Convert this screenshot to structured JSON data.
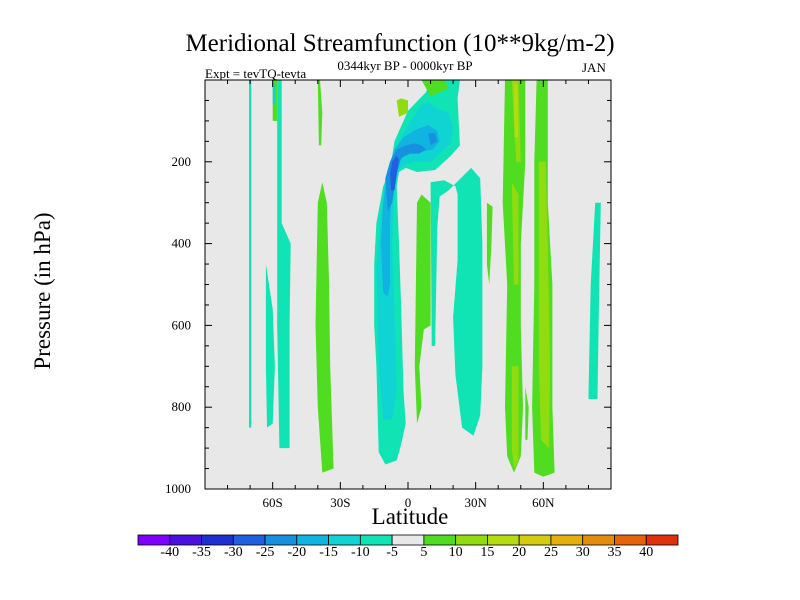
{
  "chart_data": {
    "type": "heatmap",
    "title": "Meridional Streamfunction (10**9kg/m-2)",
    "subtitle": "0344kyr BP - 0000kyr BP",
    "left_label": "Expt = tevTQ-tevta",
    "right_label": "JAN",
    "xlabel": "Latitude",
    "ylabel": "Pressure (in hPa)",
    "xlim": [
      -90,
      90
    ],
    "ylim": [
      1000,
      0
    ],
    "x_ticks": [
      {
        "value": -60,
        "label": "60S"
      },
      {
        "value": -30,
        "label": "30S"
      },
      {
        "value": 0,
        "label": "0"
      },
      {
        "value": 30,
        "label": "30N"
      },
      {
        "value": 60,
        "label": "60N"
      }
    ],
    "y_ticks": [
      {
        "value": 200,
        "label": "200"
      },
      {
        "value": 400,
        "label": "400"
      },
      {
        "value": 600,
        "label": "600"
      },
      {
        "value": 800,
        "label": "800"
      },
      {
        "value": 1000,
        "label": "1000"
      }
    ],
    "colorbar": {
      "levels": [
        -40,
        -35,
        -30,
        -25,
        -20,
        -15,
        -10,
        -5,
        5,
        10,
        15,
        20,
        25,
        30,
        35,
        40
      ],
      "colors": [
        "#8000ff",
        "#4b10e0",
        "#2030d0",
        "#2060e0",
        "#1890e0",
        "#10b4e0",
        "#10d4d4",
        "#10e4b4",
        "#e8e8e8",
        "#50dc20",
        "#90dc10",
        "#b4dc10",
        "#d4cc10",
        "#e4b00c",
        "#e48c0c",
        "#e4640c",
        "#e0300c"
      ]
    },
    "regions": [
      {
        "level": -5,
        "polygon": [
          [
            -70.5,
            0
          ],
          [
            -69.5,
            0
          ],
          [
            -69.5,
            850
          ],
          [
            -70.5,
            850
          ]
        ]
      },
      {
        "level": -5,
        "polygon": [
          [
            -63,
            450
          ],
          [
            -60,
            560
          ],
          [
            -59,
            700
          ],
          [
            -60,
            840
          ],
          [
            -62.5,
            850
          ],
          [
            -63,
            700
          ]
        ]
      },
      {
        "level": -5,
        "polygon": [
          [
            -58,
            0
          ],
          [
            -56,
            0
          ],
          [
            -56,
            350
          ],
          [
            -52,
            400
          ],
          [
            -52.5,
            600
          ],
          [
            -52.5,
            900
          ],
          [
            -57,
            900
          ],
          [
            -58,
            600
          ]
        ]
      },
      {
        "level": -5,
        "polygon": [
          [
            -15,
            450
          ],
          [
            -14,
            350
          ],
          [
            -11,
            260
          ],
          [
            -8,
            220
          ],
          [
            -6,
            150
          ],
          [
            0,
            75
          ],
          [
            8,
            30
          ],
          [
            10,
            0
          ],
          [
            23,
            0
          ],
          [
            22,
            45
          ],
          [
            23,
            160
          ],
          [
            19,
            185
          ],
          [
            12,
            220
          ],
          [
            4,
            225
          ],
          [
            -1,
            215
          ],
          [
            -4,
            225
          ],
          [
            -5,
            260
          ],
          [
            -4,
            400
          ],
          [
            -3,
            560
          ],
          [
            -2,
            760
          ],
          [
            -1,
            840
          ],
          [
            -3,
            890
          ],
          [
            -5,
            930
          ],
          [
            -10,
            940
          ],
          [
            -13,
            910
          ],
          [
            -14,
            700
          ],
          [
            -15,
            600
          ]
        ]
      },
      {
        "level": -5,
        "polygon": [
          [
            10,
            250
          ],
          [
            16,
            245
          ],
          [
            21,
            260
          ],
          [
            22,
            280
          ],
          [
            22,
            440
          ],
          [
            20,
            580
          ],
          [
            21,
            720
          ],
          [
            24,
            850
          ],
          [
            29,
            870
          ],
          [
            32,
            820
          ],
          [
            33,
            700
          ],
          [
            33,
            400
          ],
          [
            32,
            240
          ],
          [
            28,
            215
          ],
          [
            18,
            270
          ],
          [
            14,
            285
          ],
          [
            13,
            360
          ],
          [
            12,
            650
          ],
          [
            10.5,
            650
          ]
        ]
      },
      {
        "level": -5,
        "polygon": [
          [
            83,
            300
          ],
          [
            85.5,
            300
          ],
          [
            84.5,
            600
          ],
          [
            84,
            780
          ],
          [
            80,
            780
          ],
          [
            81,
            500
          ]
        ]
      },
      {
        "level": 5,
        "polygon": [
          [
            -40,
            0
          ],
          [
            -39,
            0
          ],
          [
            -38,
            80
          ],
          [
            -38.5,
            160
          ],
          [
            -39.5,
            160
          ]
        ]
      },
      {
        "level": 5,
        "polygon": [
          [
            -40,
            300
          ],
          [
            -38,
            250
          ],
          [
            -36,
            300
          ],
          [
            -35,
            500
          ],
          [
            -34.5,
            700
          ],
          [
            -33,
            950
          ],
          [
            -38,
            960
          ],
          [
            -40,
            800
          ],
          [
            -41,
            600
          ]
        ]
      },
      {
        "level": 5,
        "polygon": [
          [
            4,
            300
          ],
          [
            6,
            280
          ],
          [
            10,
            300
          ],
          [
            10,
            400
          ],
          [
            10,
            600
          ],
          [
            7,
            610
          ],
          [
            5,
            700
          ],
          [
            6,
            800
          ],
          [
            4,
            840
          ],
          [
            3,
            700
          ]
        ]
      },
      {
        "level": 5,
        "polygon": [
          [
            -60,
            0
          ],
          [
            -58,
            0
          ],
          [
            -58,
            100
          ],
          [
            -60,
            100
          ]
        ]
      },
      {
        "level": 5,
        "polygon": [
          [
            6,
            0
          ],
          [
            16,
            0
          ],
          [
            18,
            20
          ],
          [
            10,
            40
          ]
        ]
      },
      {
        "level": 5,
        "polygon": [
          [
            43,
            0
          ],
          [
            47,
            0
          ],
          [
            50,
            0
          ],
          [
            52,
            0
          ],
          [
            52,
            200
          ],
          [
            50,
            400
          ],
          [
            50,
            600
          ],
          [
            51,
            800
          ],
          [
            50,
            920
          ],
          [
            47,
            960
          ],
          [
            44,
            920
          ],
          [
            43,
            800
          ],
          [
            44,
            500
          ],
          [
            42,
            300
          ]
        ]
      },
      {
        "level": 5,
        "polygon": [
          [
            35,
            300
          ],
          [
            37.5,
            310
          ],
          [
            37,
            400
          ],
          [
            36,
            500
          ],
          [
            35,
            450
          ]
        ]
      },
      {
        "level": 5,
        "polygon": [
          [
            57,
            0
          ],
          [
            62,
            0
          ],
          [
            62,
            300
          ],
          [
            64,
            500
          ],
          [
            64,
            800
          ],
          [
            65,
            960
          ],
          [
            60,
            970
          ],
          [
            56,
            960
          ],
          [
            55,
            800
          ],
          [
            56,
            500
          ],
          [
            56,
            200
          ]
        ]
      },
      {
        "level": 5,
        "polygon": [
          [
            52,
            750
          ],
          [
            53.5,
            800
          ],
          [
            53,
            880
          ],
          [
            52,
            880
          ]
        ]
      },
      {
        "level": 10,
        "polygon": [
          [
            46,
            0
          ],
          [
            49,
            0
          ],
          [
            50,
            200
          ],
          [
            48,
            200
          ],
          [
            47,
            100
          ]
        ]
      },
      {
        "level": 10,
        "polygon": [
          [
            58,
            200
          ],
          [
            61,
            200
          ],
          [
            62,
            400
          ],
          [
            63,
            700
          ],
          [
            62.5,
            900
          ],
          [
            59,
            880
          ],
          [
            58,
            700
          ],
          [
            58,
            400
          ]
        ]
      },
      {
        "level": 10,
        "polygon": [
          [
            46,
            700
          ],
          [
            49,
            700
          ],
          [
            49,
            930
          ],
          [
            47,
            950
          ],
          [
            46,
            900
          ]
        ]
      },
      {
        "level": 10,
        "polygon": [
          [
            -5,
            50
          ],
          [
            -3,
            45
          ],
          [
            0,
            50
          ],
          [
            0,
            80
          ],
          [
            -4,
            90
          ]
        ]
      },
      {
        "level": 10,
        "polygon": [
          [
            46,
            250
          ],
          [
            49,
            280
          ],
          [
            49,
            500
          ],
          [
            47,
            500
          ]
        ]
      },
      {
        "level": 15,
        "polygon": [
          [
            47,
            10
          ],
          [
            48.5,
            10
          ],
          [
            48.8,
            140
          ],
          [
            47.2,
            140
          ]
        ]
      },
      {
        "level": -10,
        "polygon": [
          [
            -14,
            460
          ],
          [
            -12,
            330
          ],
          [
            -10,
            240
          ],
          [
            -8,
            200
          ],
          [
            -4,
            150
          ],
          [
            0,
            110
          ],
          [
            6,
            60
          ],
          [
            9,
            55
          ],
          [
            13,
            70
          ],
          [
            18,
            80
          ],
          [
            20,
            115
          ],
          [
            19,
            155
          ],
          [
            15,
            175
          ],
          [
            10,
            200
          ],
          [
            3,
            200
          ],
          [
            -3,
            210
          ],
          [
            -6,
            250
          ],
          [
            -7,
            400
          ],
          [
            -6,
            560
          ],
          [
            -5,
            760
          ],
          [
            -7,
            830
          ],
          [
            -11,
            830
          ],
          [
            -13,
            700
          ]
        ]
      },
      {
        "level": -10,
        "polygon": [
          [
            -60,
            10
          ],
          [
            -59,
            10
          ],
          [
            -59,
            60
          ],
          [
            -60,
            60
          ]
        ]
      },
      {
        "level": -15,
        "polygon": [
          [
            -12,
            400
          ],
          [
            -11,
            300
          ],
          [
            -9,
            220
          ],
          [
            -6,
            170
          ],
          [
            -2,
            140
          ],
          [
            4,
            120
          ],
          [
            9,
            110
          ],
          [
            13,
            125
          ],
          [
            14,
            150
          ],
          [
            11,
            170
          ],
          [
            6,
            175
          ],
          [
            0,
            175
          ],
          [
            -4,
            200
          ],
          [
            -7,
            250
          ],
          [
            -8,
            350
          ],
          [
            -8,
            500
          ],
          [
            -9,
            530
          ],
          [
            -11,
            520
          ]
        ]
      },
      {
        "level": -20,
        "polygon": [
          [
            -10,
            240
          ],
          [
            -8,
            200
          ],
          [
            -5,
            170
          ],
          [
            -1,
            160
          ],
          [
            3,
            155
          ],
          [
            6,
            160
          ],
          [
            8,
            170
          ],
          [
            5,
            180
          ],
          [
            1,
            180
          ],
          [
            -3,
            190
          ],
          [
            -5,
            230
          ],
          [
            -7,
            300
          ],
          [
            -9,
            320
          ]
        ]
      },
      {
        "level": -20,
        "polygon": [
          [
            9,
            130
          ],
          [
            12,
            130
          ],
          [
            13,
            150
          ],
          [
            10,
            160
          ]
        ]
      },
      {
        "level": -25,
        "polygon": [
          [
            -8,
            230
          ],
          [
            -7,
            200
          ],
          [
            -5,
            185
          ],
          [
            -4,
            195
          ],
          [
            -5,
            230
          ],
          [
            -6,
            270
          ],
          [
            -7.5,
            270
          ]
        ]
      }
    ]
  }
}
